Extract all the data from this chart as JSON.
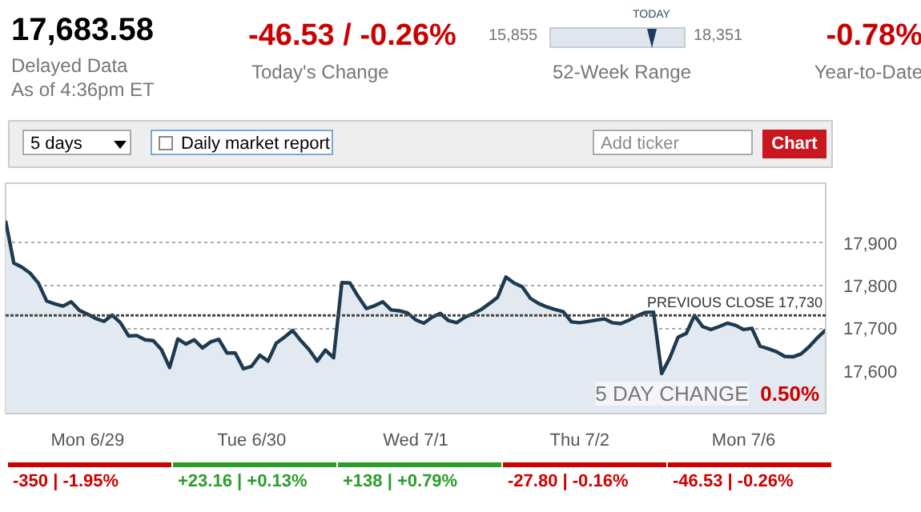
{
  "chart_data": {
    "type": "area",
    "title": "17,683.58",
    "categories": [
      null,
      null,
      null,
      null,
      null,
      null,
      null,
      null,
      null,
      null,
      "Mon 6/29",
      null,
      null,
      null,
      null,
      null,
      null,
      null,
      null,
      null,
      null,
      null,
      null,
      null,
      null,
      null,
      null,
      null,
      null,
      null,
      "Tue 6/30",
      null,
      null,
      null,
      null,
      null,
      null,
      null,
      null,
      null,
      null,
      null,
      null,
      null,
      null,
      null,
      null,
      null,
      null,
      null,
      "Wed 7/1",
      null,
      null,
      null,
      null,
      null,
      null,
      null,
      null,
      null,
      null,
      null,
      null,
      null,
      null,
      null,
      null,
      null,
      null,
      null,
      "Thu 7/2",
      null,
      null,
      null,
      null,
      null,
      null,
      null,
      null,
      null,
      null,
      null,
      null,
      null,
      null,
      null,
      null,
      null,
      null,
      null,
      "Mon 7/6",
      null,
      null,
      null,
      null,
      null,
      null,
      null,
      null,
      null,
      null
    ],
    "series": [
      {
        "color": "#1d3a50",
        "values": [
          17952,
          17853,
          17843,
          17829,
          17806,
          17764,
          17757,
          17752,
          17762,
          17742,
          17733,
          17723,
          17716,
          17731,
          17713,
          17682,
          17683,
          17673,
          17671,
          17650,
          17608,
          17675,
          17663,
          17673,
          17654,
          17668,
          17674,
          17642,
          17642,
          17605,
          17611,
          17637,
          17623,
          17665,
          17679,
          17695,
          17671,
          17650,
          17623,
          17649,
          17631,
          17807,
          17806,
          17774,
          17746,
          17753,
          17762,
          17743,
          17741,
          17736,
          17720,
          17712,
          17726,
          17735,
          17718,
          17713,
          17726,
          17734,
          17744,
          17758,
          17773,
          17820,
          17806,
          17797,
          17770,
          17758,
          17750,
          17744,
          17739,
          17715,
          17713,
          17716,
          17719,
          17722,
          17713,
          17711,
          17719,
          17729,
          17737,
          17739,
          17594,
          17631,
          17679,
          17688,
          17730,
          17704,
          17697,
          17704,
          17712,
          17707,
          17697,
          17700,
          17658,
          17652,
          17645,
          17634,
          17633,
          17640,
          17657,
          17678,
          17696
        ]
      }
    ],
    "ylim": [
      17500,
      18040
    ],
    "yticks": [
      {
        "value": 17600,
        "label": "17,600"
      },
      {
        "value": 17700,
        "label": "17,700"
      },
      {
        "value": 17800,
        "label": "17,800"
      },
      {
        "value": 17900,
        "label": "17,900"
      }
    ],
    "grid": "y",
    "ref_lines": [
      {
        "axis": "y",
        "value": 17730,
        "label": "PREVIOUS CLOSE 17,730",
        "color": "#444444",
        "line_style": "dotted"
      }
    ],
    "annotations": [
      "Delayed Data",
      "As of 4:36pm ET",
      "-46.53 / -0.26%",
      "Today's Change",
      "15,855",
      "18,351",
      "TODAY",
      "52-Week Range",
      "-0.78%",
      "Year-to-Date",
      "5 days",
      "Daily market report",
      "Add ticker",
      "Chart",
      "5 DAY CHANGE",
      "0.50%",
      "-350 | -1.95%",
      "+23.16 | +0.13%",
      "+138 | +0.79%",
      "-27.80 | -0.16%",
      "-46.53 | -0.26%"
    ]
  }
}
